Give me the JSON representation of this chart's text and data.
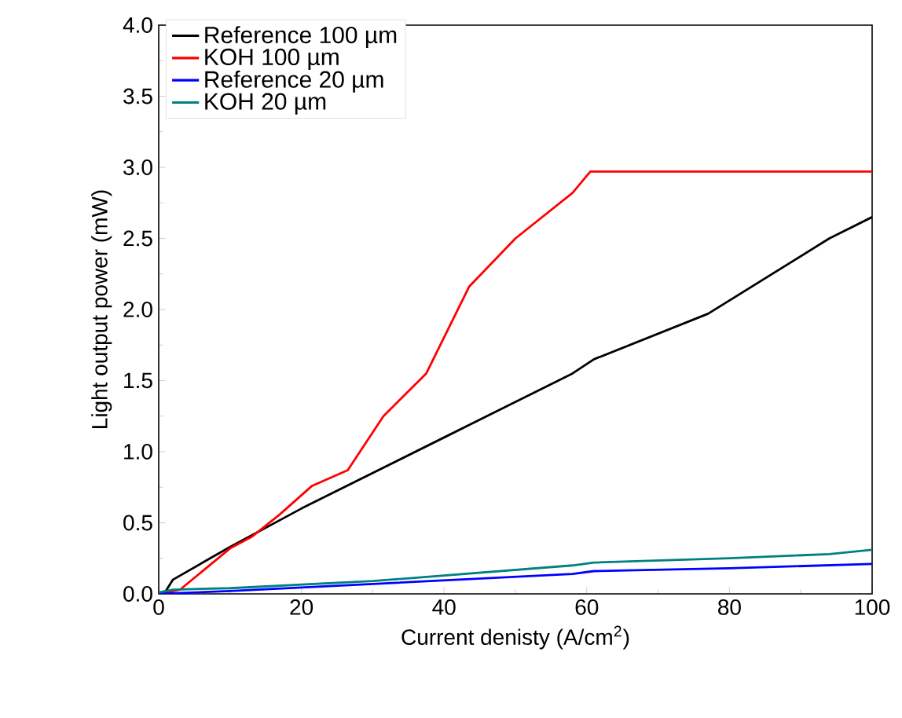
{
  "chart_data": {
    "type": "line",
    "xlabel": "Current denisty (A/cm$^{2}$)",
    "ylabel": "Light output power (mW)",
    "xlim": [
      0,
      100
    ],
    "ylim": [
      0,
      4
    ],
    "xticks": [
      0,
      20,
      40,
      60,
      80,
      100
    ],
    "yticks": [
      {
        "value": 0,
        "label": "0.0"
      },
      {
        "value": 0.5,
        "label": "0.5"
      },
      {
        "value": 1,
        "label": "1.0"
      },
      {
        "value": 1.5,
        "label": "1.5"
      },
      {
        "value": 2,
        "label": "2.0"
      },
      {
        "value": 2.5,
        "label": "2.5"
      },
      {
        "value": 3,
        "label": "3.0"
      },
      {
        "value": 3.5,
        "label": "3.5"
      },
      {
        "value": 4,
        "label": "4.0"
      }
    ],
    "legend": "top left",
    "grid": false,
    "marker": "none",
    "line_style": "solid",
    "series": [
      {
        "name": "Reference 100 µm",
        "color": "#000000",
        "x": [
          0,
          1,
          2,
          10,
          20,
          30,
          40,
          44,
          58,
          61,
          77,
          94,
          100
        ],
        "values": [
          0,
          0.02,
          0.1,
          0.33,
          0.6,
          0.85,
          1.1,
          1.2,
          1.55,
          1.65,
          1.97,
          2.5,
          2.65
        ]
      },
      {
        "name": "KOH 100 µm",
        "color": "#ff0000",
        "x": [
          0,
          3,
          10,
          13,
          17,
          21.5,
          26.5,
          31.5,
          37.5,
          43.5,
          50,
          58,
          60.5,
          100
        ],
        "values": [
          0,
          0.03,
          0.32,
          0.4,
          0.56,
          0.76,
          0.87,
          1.25,
          1.55,
          2.16,
          2.5,
          2.82,
          2.97,
          2.97
        ]
      },
      {
        "name": "Reference 20 µm",
        "color": "#0000ff",
        "x": [
          0,
          10,
          30,
          58,
          61,
          80,
          100
        ],
        "values": [
          0,
          0.02,
          0.07,
          0.14,
          0.16,
          0.18,
          0.21
        ]
      },
      {
        "name": "KOH 20 µm",
        "color": "#008080",
        "x": [
          0,
          2,
          10,
          30,
          58,
          61,
          80,
          94,
          100
        ],
        "values": [
          0.01,
          0.03,
          0.04,
          0.09,
          0.2,
          0.22,
          0.25,
          0.28,
          0.31
        ]
      }
    ]
  }
}
